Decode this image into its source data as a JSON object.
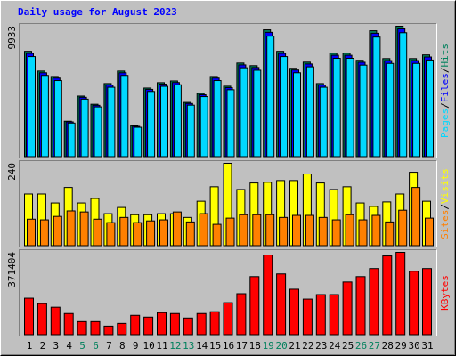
{
  "chart_data": [
    {
      "type": "bar",
      "title": "Daily usage for August 2023",
      "legend_separator": "/",
      "ylim": [
        0,
        9933
      ],
      "yticks": [
        9933
      ],
      "series": [
        {
          "name": "Hits",
          "color": "#00805c",
          "values": [
            8030,
            6530,
            6120,
            2720,
            4630,
            4010,
            5580,
            6530,
            2380,
            5240,
            5650,
            5780,
            4150,
            4830,
            6120,
            5380,
            7140,
            6940,
            9660,
            8030,
            6740,
            7210,
            5580,
            7890,
            7890,
            7350,
            9590,
            7480,
            9933,
            7480,
            7760
          ]
        },
        {
          "name": "Files",
          "color": "#0000ff",
          "values": [
            7870,
            6400,
            6000,
            2670,
            4540,
            3930,
            5470,
            6400,
            2330,
            5140,
            5540,
            5660,
            4070,
            4730,
            6000,
            5270,
            7000,
            6800,
            9470,
            7870,
            6610,
            7070,
            5470,
            7730,
            7730,
            7200,
            9400,
            7330,
            9730,
            7330,
            7600
          ]
        },
        {
          "name": "Pages",
          "color": "#00d8ff",
          "values": [
            7630,
            6200,
            5810,
            2580,
            4400,
            3810,
            5300,
            6200,
            2260,
            4980,
            5370,
            5490,
            3940,
            4590,
            5810,
            5110,
            6780,
            6590,
            9180,
            7630,
            6400,
            6850,
            5300,
            7500,
            7500,
            6980,
            9110,
            7110,
            9440,
            7110,
            7370
          ]
        }
      ]
    },
    {
      "type": "bar",
      "legend_separator": "/",
      "ylim": [
        0,
        240
      ],
      "yticks": [
        240
      ],
      "series": [
        {
          "name": "Visits",
          "color": "#ffff00",
          "values": [
            151,
            151,
            125,
            170,
            125,
            138,
            94,
            112,
            91,
            91,
            94,
            94,
            83,
            130,
            172,
            240,
            164,
            183,
            185,
            190,
            190,
            209,
            183,
            164,
            172,
            125,
            115,
            128,
            151,
            214,
            130
          ]
        },
        {
          "name": "Sites",
          "color": "#ff8000",
          "values": [
            78,
            76,
            86,
            102,
            99,
            78,
            68,
            83,
            68,
            73,
            76,
            99,
            70,
            94,
            63,
            81,
            91,
            91,
            91,
            83,
            89,
            89,
            83,
            76,
            91,
            76,
            89,
            70,
            104,
            170,
            81
          ]
        }
      ]
    },
    {
      "type": "bar",
      "ylim": [
        0,
        371404
      ],
      "yticks": [
        371404
      ],
      "categories": [
        "1",
        "2",
        "3",
        "4",
        "5",
        "6",
        "7",
        "8",
        "9",
        "10",
        "11",
        "12",
        "13",
        "14",
        "15",
        "16",
        "17",
        "18",
        "19",
        "20",
        "21",
        "22",
        "23",
        "24",
        "25",
        "26",
        "27",
        "28",
        "29",
        "30",
        "31"
      ],
      "category_color": "#000000",
      "weekend_color": "#00805c",
      "weekend_indices": [
        4,
        5,
        11,
        12,
        18,
        19,
        25,
        26
      ],
      "series": [
        {
          "name": "KBytes",
          "color": "#ff0000",
          "values": [
            165517,
            141295,
            125147,
            96888,
            60555,
            60555,
            40370,
            52481,
            88814,
            80740,
            100925,
            96888,
            76703,
            96888,
            104962,
            145332,
            185702,
            262405,
            359293,
            274516,
            205887,
            161480,
            181665,
            181665,
            238183,
            262405,
            298738,
            355256,
            371404,
            286627,
            298738
          ]
        }
      ]
    }
  ]
}
